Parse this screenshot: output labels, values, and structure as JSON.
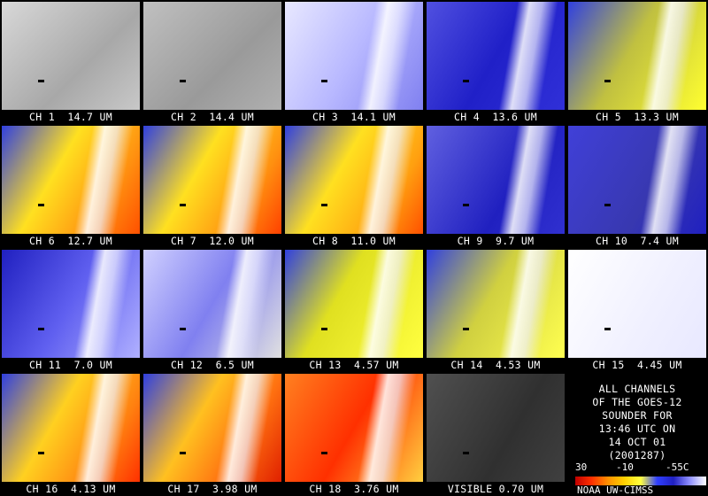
{
  "panels": [
    "CH 1  14.7 UM",
    "CH 2  14.4 UM",
    "CH 3  14.1 UM",
    "CH 4  13.6 UM",
    "CH 5  13.3 UM",
    "CH 6  12.7 UM",
    "CH 7  12.0 UM",
    "CH 8  11.0 UM",
    "CH 9  9.7 UM",
    "CH 10  7.4 UM",
    "CH 11  7.0 UM",
    "CH 12  6.5 UM",
    "CH 13  4.57 UM",
    "CH 14  4.53 UM",
    "CH 15  4.45 UM",
    "CH 16  4.13 UM",
    "CH 17  3.98 UM",
    "CH 18  3.76 UM",
    "VISIBLE 0.70 UM"
  ],
  "info": {
    "lines": [
      "ALL CHANNELS",
      "OF THE GOES-12",
      "SOUNDER FOR",
      "13:46 UTC ON",
      "14 OCT 01",
      "(2001287)"
    ],
    "colorbar_labels": [
      "30",
      "-10",
      "-55C"
    ],
    "credit": "NOAA UW-CIMSS"
  }
}
